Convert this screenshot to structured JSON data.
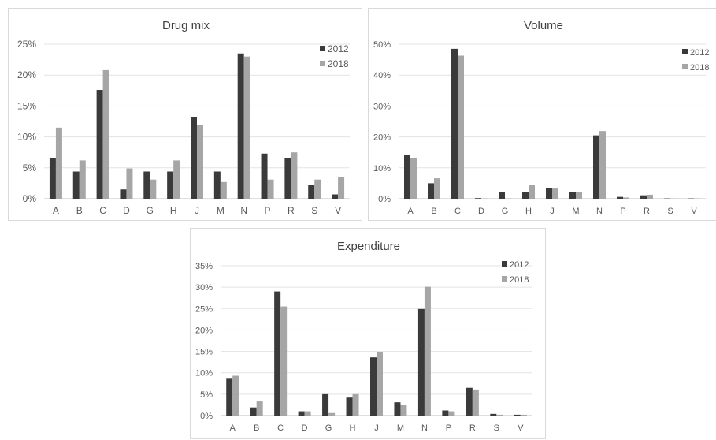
{
  "chart_data": [
    {
      "type": "bar",
      "title": "Drug mix",
      "xlabel": "",
      "ylabel": "",
      "categories": [
        "A",
        "B",
        "C",
        "D",
        "G",
        "H",
        "J",
        "M",
        "N",
        "P",
        "R",
        "S",
        "V"
      ],
      "series": [
        {
          "name": "2012",
          "color": "#3a3a3a",
          "values": [
            6.6,
            4.4,
            17.6,
            1.5,
            4.4,
            4.4,
            13.2,
            4.4,
            23.5,
            7.3,
            6.6,
            2.2,
            0.7
          ]
        },
        {
          "name": "2018",
          "color": "#a6a6a6",
          "values": [
            11.5,
            6.2,
            20.8,
            4.9,
            3.1,
            6.2,
            11.9,
            2.7,
            23.0,
            3.1,
            7.5,
            3.1,
            3.5
          ]
        }
      ],
      "ylim": [
        0,
        25
      ],
      "yticks": [
        0,
        5,
        10,
        15,
        20,
        25
      ],
      "ytick_labels": [
        "0%",
        "5%",
        "10%",
        "15%",
        "20%",
        "25%"
      ],
      "grid": true,
      "legend": "top-right"
    },
    {
      "type": "bar",
      "title": "Volume",
      "xlabel": "",
      "ylabel": "",
      "categories": [
        "A",
        "B",
        "C",
        "D",
        "G",
        "H",
        "J",
        "M",
        "N",
        "P",
        "R",
        "S",
        "V"
      ],
      "series": [
        {
          "name": "2012",
          "color": "#3a3a3a",
          "values": [
            14.1,
            5.0,
            48.5,
            0.2,
            2.2,
            2.2,
            3.5,
            2.2,
            20.5,
            0.6,
            1.1,
            0.1,
            0.1
          ]
        },
        {
          "name": "2018",
          "color": "#a6a6a6",
          "values": [
            13.2,
            6.6,
            46.3,
            0.1,
            0.1,
            4.4,
            3.3,
            2.2,
            21.9,
            0.4,
            1.3,
            0.1,
            0.1
          ]
        }
      ],
      "ylim": [
        0,
        50
      ],
      "yticks": [
        0,
        10,
        20,
        30,
        40,
        50
      ],
      "ytick_labels": [
        "0%",
        "10%",
        "20%",
        "30%",
        "40%",
        "50%"
      ],
      "grid": true,
      "legend": "top-right"
    },
    {
      "type": "bar",
      "title": "Expenditure",
      "xlabel": "",
      "ylabel": "",
      "categories": [
        "A",
        "B",
        "C",
        "D",
        "G",
        "H",
        "J",
        "M",
        "N",
        "P",
        "R",
        "S",
        "V"
      ],
      "series": [
        {
          "name": "2012",
          "color": "#3a3a3a",
          "values": [
            8.6,
            1.9,
            29.0,
            1.0,
            5.0,
            4.2,
            13.6,
            3.1,
            24.9,
            1.2,
            6.5,
            0.4,
            0.2
          ]
        },
        {
          "name": "2018",
          "color": "#a6a6a6",
          "values": [
            9.3,
            3.3,
            25.5,
            1.0,
            0.6,
            5.0,
            14.9,
            2.5,
            30.1,
            1.0,
            6.1,
            0.2,
            0.2
          ]
        }
      ],
      "ylim": [
        0,
        35
      ],
      "yticks": [
        0,
        5,
        10,
        15,
        20,
        25,
        30,
        35
      ],
      "ytick_labels": [
        "0%",
        "5%",
        "10%",
        "15%",
        "20%",
        "25%",
        "30%",
        "35%"
      ],
      "grid": true,
      "legend": "top-right"
    }
  ]
}
